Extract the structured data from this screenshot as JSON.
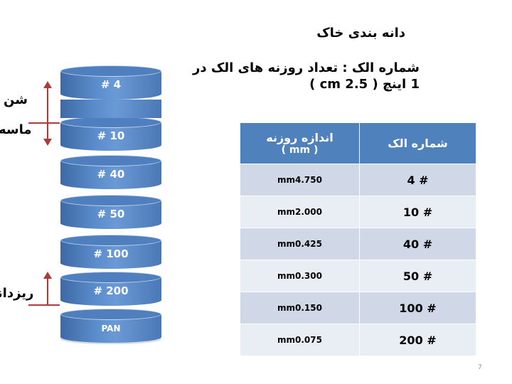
{
  "slide": {
    "title": "دانه بندی خاک",
    "subtitle": "شماره الک : تعداد روزنه های الک در 1 اینچ ( 2.5 cm )",
    "page_number": "7"
  },
  "stack": {
    "levels": [
      "# 4",
      "# 10",
      "# 40",
      "# 50",
      "# 100",
      "# 200",
      "PAN"
    ],
    "side_labels": {
      "gravel": "شن",
      "sand": "ماسه",
      "fines": "ریزدانه"
    },
    "arrow_color": "#b03a3a",
    "cylinder_color": "#4f81bd"
  },
  "table": {
    "headers": {
      "sieve_number": "شماره الک",
      "opening_size": "اندازه روزنه",
      "opening_unit": "( mm )"
    },
    "rows": [
      {
        "sieve": "# 4",
        "size": "mm4.750"
      },
      {
        "sieve": "# 10",
        "size": "mm2.000"
      },
      {
        "sieve": "# 40",
        "size": "mm0.425"
      },
      {
        "sieve": "# 50",
        "size": "mm0.300"
      },
      {
        "sieve": "# 100",
        "size": "mm0.150"
      },
      {
        "sieve": "# 200",
        "size": "mm0.075"
      }
    ],
    "header_color": "#4f81bd",
    "row_colors": [
      "#d0d8e8",
      "#e9edf4"
    ]
  }
}
